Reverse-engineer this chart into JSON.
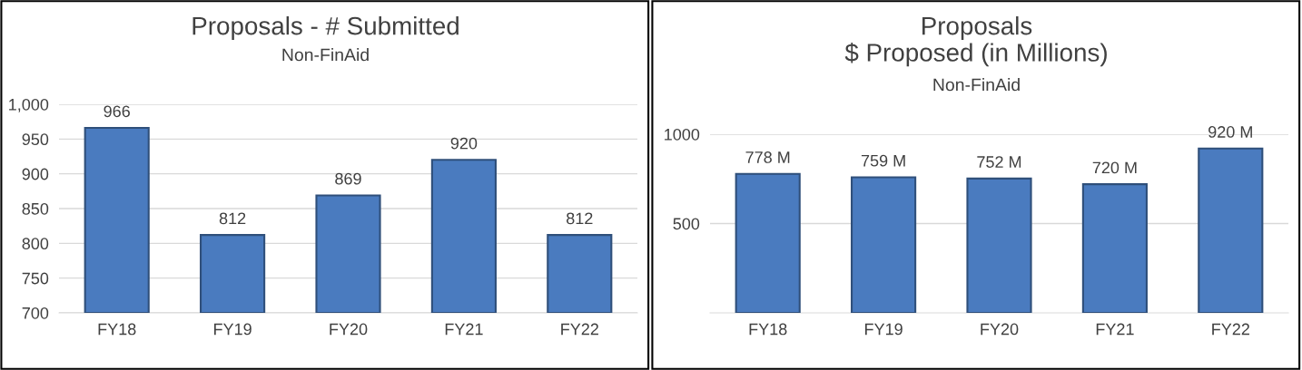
{
  "chart_data": [
    {
      "type": "bar",
      "title": "Proposals - # Submitted",
      "subtitle": "Non-FinAid",
      "categories": [
        "FY18",
        "FY19",
        "FY20",
        "FY21",
        "FY22"
      ],
      "values": [
        966,
        812,
        869,
        920,
        812
      ],
      "color": "#4a7bbf",
      "ylim": [
        700,
        1000
      ],
      "yticks": [
        700,
        750,
        800,
        850,
        900,
        950,
        {
          "value": 1000,
          "label": "1,000"
        }
      ],
      "grid": "y",
      "data_labels": true
    },
    {
      "type": "bar",
      "title": "Proposals\n$ Proposed (in Millions)",
      "subtitle": "Non-FinAid",
      "categories": [
        "FY18",
        "FY19",
        "FY20",
        "FY21",
        "FY22"
      ],
      "values": [
        778,
        759,
        752,
        720,
        920
      ],
      "value_labels": [
        "778 M",
        "759 M",
        "752 M",
        "720 M",
        "920 M"
      ],
      "color": "#4a7bbf",
      "ylim": [
        0,
        1000
      ],
      "yticks": [
        500,
        1000
      ],
      "grid": "y"
    }
  ]
}
